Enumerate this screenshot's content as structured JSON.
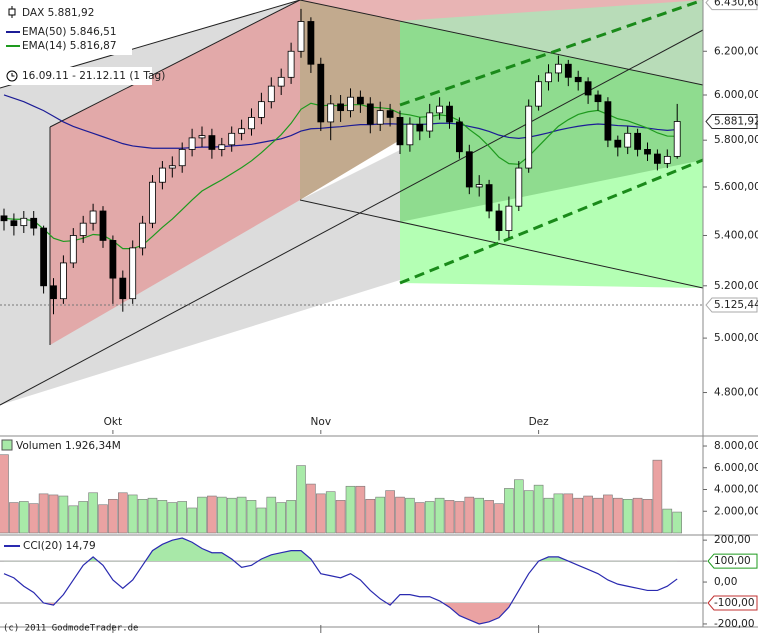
{
  "chart_data": [
    {
      "type": "candlestick",
      "name": "DAX 5.881,92",
      "period": "16.09.11 - 21.12.11 (1 Tag)",
      "categories": [
        null,
        null,
        null,
        null,
        null,
        null,
        null,
        null,
        null,
        null,
        null,
        "Okt",
        null,
        null,
        null,
        null,
        null,
        null,
        null,
        null,
        null,
        null,
        null,
        null,
        null,
        null,
        null,
        null,
        null,
        null,
        null,
        null,
        "Nov",
        null,
        null,
        null,
        null,
        null,
        null,
        null,
        null,
        null,
        null,
        null,
        null,
        null,
        null,
        null,
        null,
        null,
        null,
        null,
        null,
        null,
        "Dez",
        null,
        null,
        null,
        null,
        null,
        null,
        null,
        null,
        null,
        null,
        null,
        null,
        null,
        null
      ],
      "open": [
        5480,
        5460,
        5440,
        5470,
        5430,
        5200,
        5150,
        5290,
        5400,
        5450,
        5500,
        5380,
        5230,
        5150,
        5350,
        5450,
        5620,
        5680,
        5690,
        5760,
        5810,
        5820,
        5760,
        5780,
        5830,
        5850,
        5900,
        5970,
        6040,
        6080,
        6200,
        6340,
        6140,
        5880,
        5960,
        5930,
        5990,
        5960,
        5870,
        5930,
        5900,
        5780,
        5870,
        5840,
        5920,
        5950,
        5880,
        5750,
        5600,
        5610,
        5500,
        5420,
        5520,
        5680,
        5950,
        6060,
        6100,
        6140,
        6080,
        6060,
        6000,
        5970,
        5800,
        5770,
        5830,
        5760,
        5740,
        5700,
        5730
      ],
      "high": [
        5510,
        5490,
        5500,
        5500,
        5440,
        5230,
        5320,
        5430,
        5480,
        5530,
        5520,
        5400,
        5260,
        5380,
        5480,
        5650,
        5710,
        5730,
        5790,
        5850,
        5860,
        5850,
        5810,
        5860,
        5890,
        5940,
        6010,
        6080,
        6120,
        6240,
        6400,
        6360,
        6170,
        6000,
        6000,
        6030,
        6020,
        5990,
        5970,
        5960,
        5930,
        5900,
        5900,
        5960,
        5990,
        5970,
        5900,
        5780,
        5650,
        5630,
        5530,
        5560,
        5710,
        5980,
        6090,
        6140,
        6180,
        6160,
        6110,
        6080,
        6020,
        5990,
        5820,
        5860,
        5850,
        5790,
        5760,
        5760,
        5960
      ],
      "low": [
        5420,
        5400,
        5410,
        5400,
        5170,
        5090,
        5130,
        5270,
        5370,
        5420,
        5350,
        5130,
        5100,
        5130,
        5320,
        5430,
        5590,
        5640,
        5660,
        5730,
        5770,
        5720,
        5730,
        5750,
        5800,
        5820,
        5870,
        5940,
        6000,
        6050,
        6170,
        6100,
        5840,
        5800,
        5880,
        5900,
        5920,
        5830,
        5840,
        5860,
        5740,
        5750,
        5800,
        5810,
        5890,
        5850,
        5720,
        5570,
        5560,
        5470,
        5380,
        5390,
        5500,
        5660,
        5930,
        6020,
        6060,
        6040,
        6020,
        5960,
        5930,
        5770,
        5730,
        5740,
        5730,
        5710,
        5670,
        5680,
        5720
      ],
      "close": [
        5460,
        5440,
        5470,
        5430,
        5200,
        5150,
        5290,
        5400,
        5450,
        5500,
        5380,
        5230,
        5150,
        5350,
        5450,
        5620,
        5680,
        5690,
        5760,
        5810,
        5820,
        5760,
        5780,
        5830,
        5850,
        5900,
        5970,
        6040,
        6080,
        6200,
        6340,
        6140,
        5880,
        5960,
        5930,
        5990,
        5960,
        5870,
        5930,
        5900,
        5780,
        5870,
        5840,
        5920,
        5950,
        5880,
        5750,
        5600,
        5610,
        5500,
        5420,
        5520,
        5680,
        5950,
        6060,
        6100,
        6140,
        6080,
        6060,
        6000,
        5970,
        5800,
        5770,
        5830,
        5760,
        5740,
        5700,
        5730,
        5881.92
      ],
      "series": [
        {
          "name": "EMA(50) 5.846,51",
          "color": "#1c1c96",
          "values": [
            6000,
            5985,
            5970,
            5950,
            5930,
            5905,
            5880,
            5860,
            5845,
            5830,
            5815,
            5800,
            5785,
            5775,
            5770,
            5765,
            5765,
            5765,
            5765,
            5768,
            5770,
            5770,
            5772,
            5775,
            5778,
            5782,
            5790,
            5798,
            5806,
            5820,
            5840,
            5850,
            5852,
            5856,
            5859,
            5864,
            5868,
            5868,
            5871,
            5872,
            5870,
            5870,
            5869,
            5871,
            5874,
            5874,
            5870,
            5860,
            5851,
            5838,
            5822,
            5812,
            5808,
            5813,
            5822,
            5832,
            5844,
            5853,
            5861,
            5867,
            5871,
            5868,
            5864,
            5862,
            5858,
            5853,
            5847,
            5843,
            5846.51
          ]
        },
        {
          "name": "EMA(14) 5.816,87",
          "color": "#1e9a1e",
          "values": [
            5470,
            5466,
            5466,
            5460,
            5426,
            5389,
            5376,
            5379,
            5389,
            5404,
            5401,
            5378,
            5347,
            5347,
            5361,
            5396,
            5433,
            5467,
            5506,
            5546,
            5583,
            5607,
            5630,
            5656,
            5682,
            5711,
            5746,
            5785,
            5824,
            5874,
            5936,
            5963,
            5952,
            5954,
            5951,
            5956,
            5957,
            5945,
            5943,
            5938,
            5917,
            5911,
            5901,
            5904,
            5911,
            5906,
            5885,
            5847,
            5815,
            5773,
            5726,
            5699,
            5696,
            5730,
            5774,
            5818,
            5861,
            5890,
            5913,
            5925,
            5931,
            5913,
            5894,
            5885,
            5869,
            5853,
            5832,
            5818,
            5816.87
          ]
        }
      ],
      "log": true,
      "ylim": [
        4667,
        6443
      ],
      "yticks": [
        {
          "value": 4800,
          "label": "4.800,00"
        },
        {
          "value": 5000,
          "label": "5.000,00"
        },
        {
          "value": 5200,
          "label": "5.200,00"
        },
        {
          "value": 5400,
          "label": "5.400,00"
        },
        {
          "value": 5600,
          "label": "5.600,00"
        },
        {
          "value": 5800,
          "label": "5.800,00"
        },
        {
          "value": 6000,
          "label": "6.000,00"
        },
        {
          "value": 6200,
          "label": "6.200,00"
        }
      ],
      "markers": [
        {
          "value": 6430.6,
          "label": "6.430,60"
        },
        {
          "value": 5881.92,
          "label": "5.881,92"
        },
        {
          "value": 5125.44,
          "label": "5.125,44"
        }
      ]
    },
    {
      "type": "bar",
      "series": [
        {
          "name": "Volumen 1.926,34M",
          "values": [
            7200,
            2800,
            2900,
            2700,
            3600,
            3500,
            3400,
            2500,
            2900,
            3700,
            2600,
            3100,
            3700,
            3500,
            3100,
            3200,
            3000,
            2800,
            2900,
            2300,
            3300,
            3400,
            3300,
            3200,
            3300,
            3000,
            2300,
            3300,
            2800,
            3000,
            6200,
            4500,
            3600,
            3800,
            3000,
            4300,
            4300,
            3100,
            3300,
            3900,
            3300,
            3200,
            2800,
            2900,
            3200,
            3000,
            2900,
            3300,
            3200,
            3000,
            2700,
            4100,
            4900,
            3900,
            4400,
            3200,
            3600,
            3600,
            3200,
            3400,
            3200,
            3500,
            3200,
            3100,
            3200,
            3100,
            6700,
            2200,
            1926.34
          ]
        }
      ],
      "colors": {
        "up": "#a8eaa8",
        "down": "#eaa2a2"
      },
      "ylim": [
        0,
        8830
      ],
      "yticks": [
        {
          "value": 2000,
          "label": "2.000,00M"
        },
        {
          "value": 4000,
          "label": "4.000,00M"
        },
        {
          "value": 6000,
          "label": "6.000,00M"
        },
        {
          "value": 8000,
          "label": "8.000,00M"
        }
      ]
    },
    {
      "type": "line",
      "series": [
        {
          "name": "CCI(20) 14,79",
          "color": "#2a2ab0",
          "values": [
            40,
            20,
            -20,
            -50,
            -100,
            -110,
            -60,
            10,
            80,
            120,
            80,
            10,
            -30,
            10,
            80,
            150,
            180,
            200,
            210,
            190,
            160,
            140,
            140,
            110,
            70,
            80,
            110,
            130,
            140,
            150,
            150,
            110,
            40,
            30,
            20,
            40,
            10,
            -40,
            -80,
            -110,
            -60,
            -60,
            -70,
            -70,
            -90,
            -120,
            -160,
            -180,
            -200,
            -190,
            -170,
            -120,
            -40,
            40,
            100,
            120,
            120,
            100,
            80,
            60,
            40,
            10,
            -10,
            -20,
            -30,
            -40,
            -40,
            -20,
            14.79
          ]
        }
      ],
      "thresholds": [
        100,
        -100
      ],
      "ylim": [
        -205,
        215
      ],
      "yticks": [
        {
          "value": 200,
          "label": "200,00"
        },
        {
          "value": 100,
          "label": "100,00"
        },
        {
          "value": 0,
          "label": "0,00"
        },
        {
          "value": -100,
          "label": "-100,00"
        },
        {
          "value": -200,
          "label": "-200,00"
        }
      ]
    }
  ],
  "footer": "(c) 2011 GodmodeTrader.de"
}
